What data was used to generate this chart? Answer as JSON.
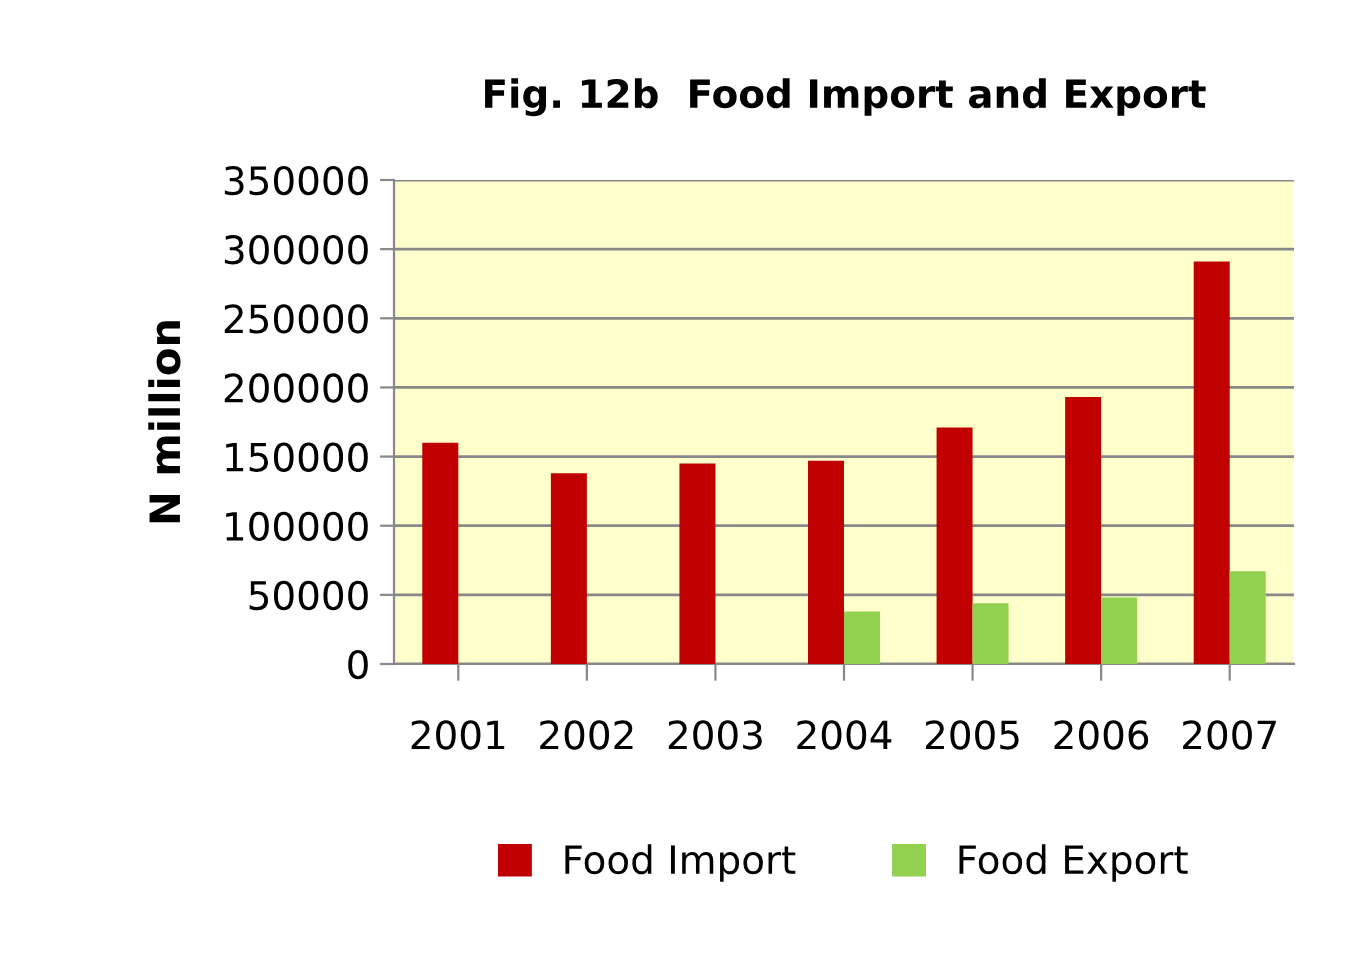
{
  "chart_data": {
    "type": "bar",
    "title": "Fig. 12b  Food Import and Export",
    "ylabel": "N million",
    "categories": [
      "2001",
      "2002",
      "2003",
      "2004",
      "2005",
      "2006",
      "2007"
    ],
    "series": [
      {
        "name": "Food Import",
        "color": "#c00000",
        "values": [
          160000,
          138000,
          145000,
          147000,
          171000,
          193000,
          291000
        ]
      },
      {
        "name": "Food Export",
        "color": "#92d050",
        "values": [
          null,
          null,
          null,
          38000,
          44000,
          48000,
          67000
        ]
      }
    ],
    "ylim": [
      0,
      350000
    ],
    "yticks": [
      0,
      50000,
      100000,
      150000,
      200000,
      250000,
      300000,
      350000
    ],
    "grid": "y",
    "legend": "bottom"
  }
}
